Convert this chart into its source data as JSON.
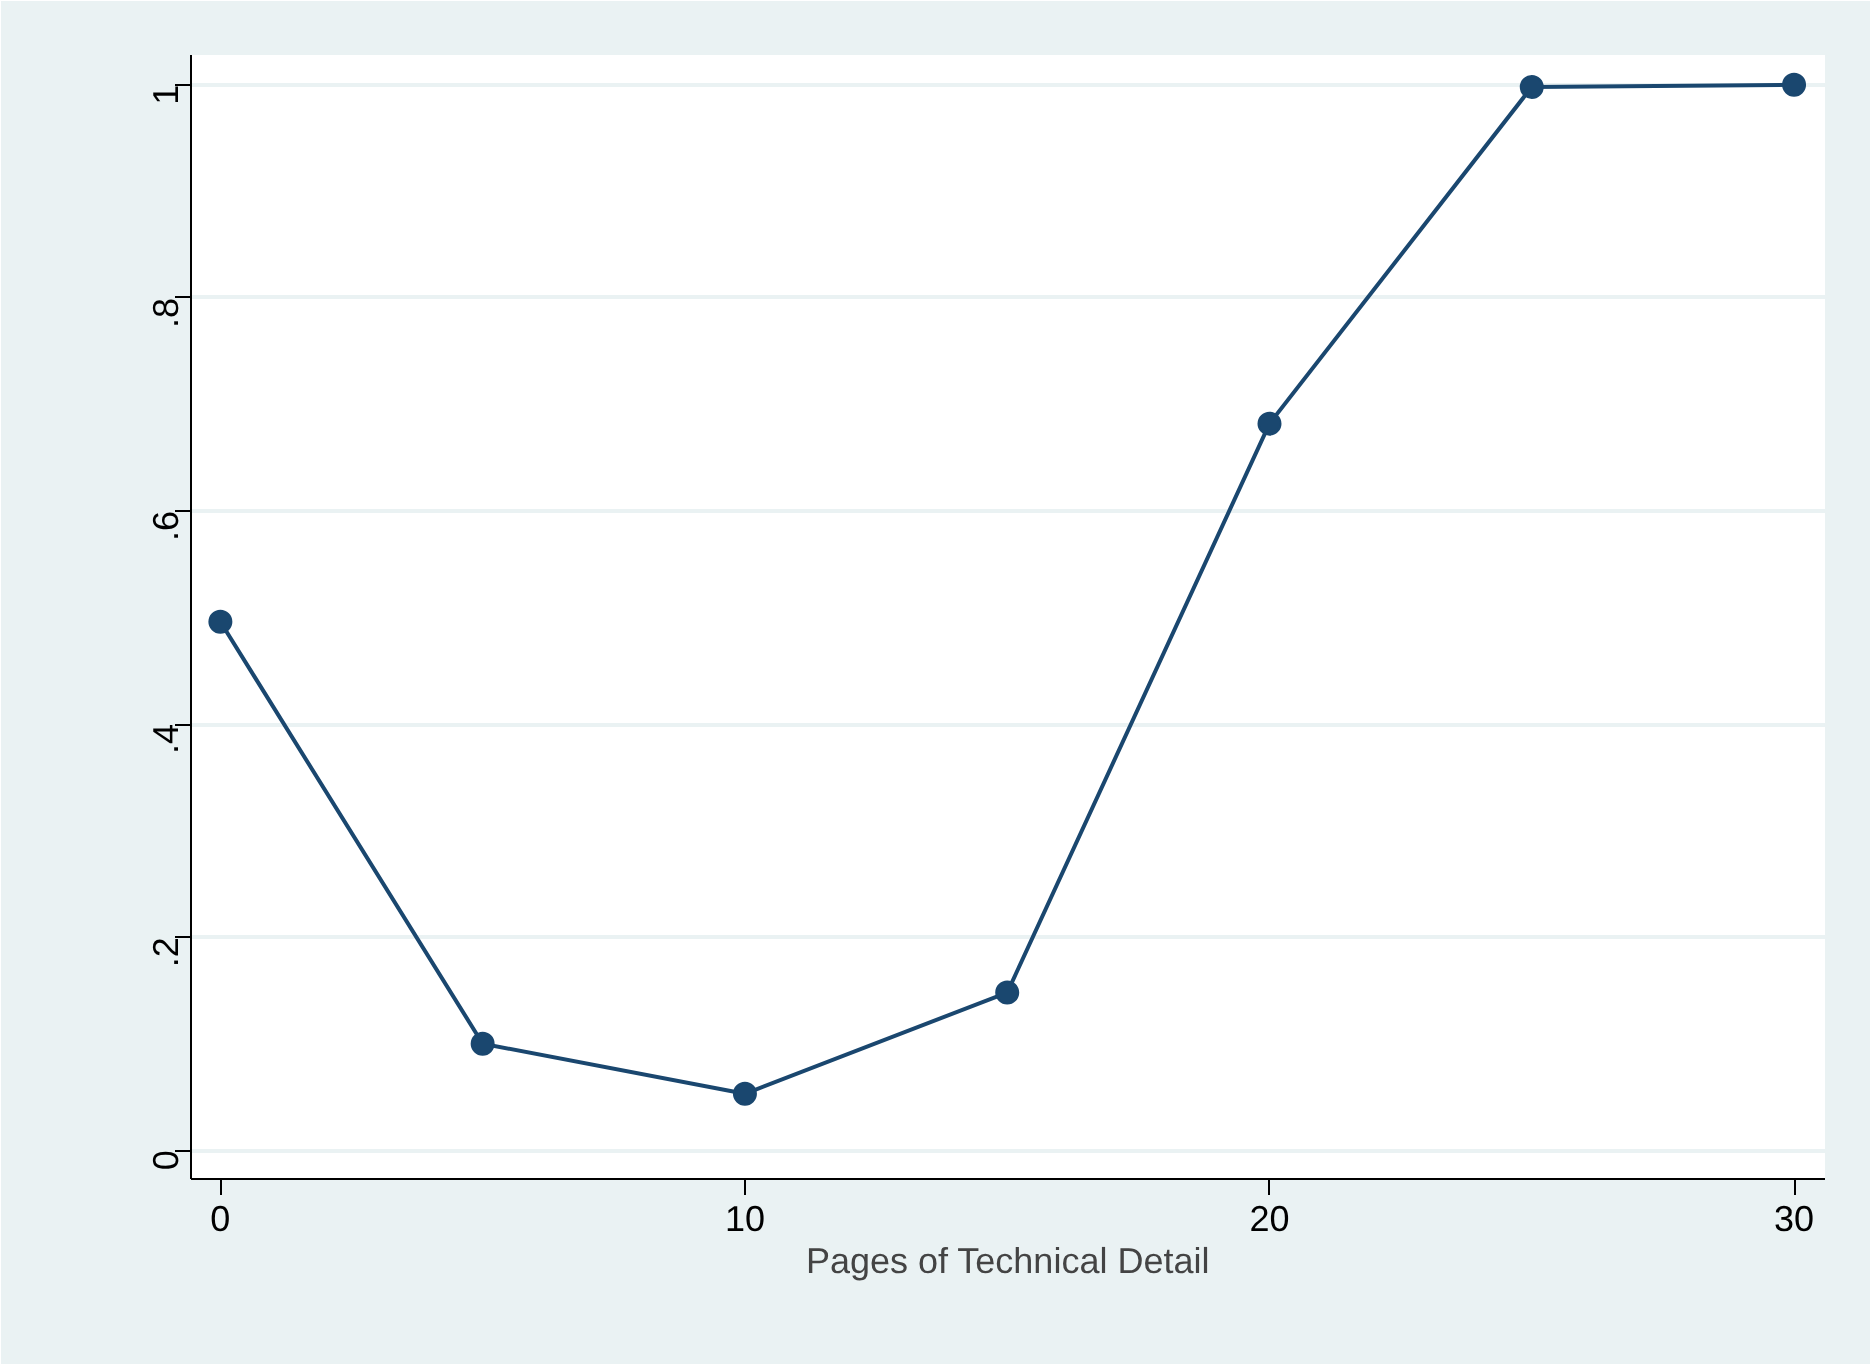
{
  "chart_data": {
    "type": "line",
    "xlabel": "Pages of Technical Detail",
    "x": [
      0,
      5,
      10,
      15,
      20,
      25,
      30
    ],
    "series": [
      {
        "color": "#1a476f",
        "values": [
          0.496,
          0.1,
          0.053,
          0.148,
          0.682,
          0.998,
          1.0
        ]
      }
    ],
    "xlim": [
      -0.56,
      30.59
    ],
    "ylim": [
      -0.027,
      1.028
    ],
    "xticks": [
      0,
      10,
      20,
      30
    ],
    "yticks": [
      {
        "value": 0,
        "label": "0"
      },
      {
        "value": 0.2,
        "label": ".2"
      },
      {
        "value": 0.4,
        "label": ".4"
      },
      {
        "value": 0.6,
        "label": ".6"
      },
      {
        "value": 0.8,
        "label": ".8"
      },
      {
        "value": 1,
        "label": "1"
      }
    ],
    "grid": "y",
    "marker": "circle",
    "line_style": "solid"
  }
}
